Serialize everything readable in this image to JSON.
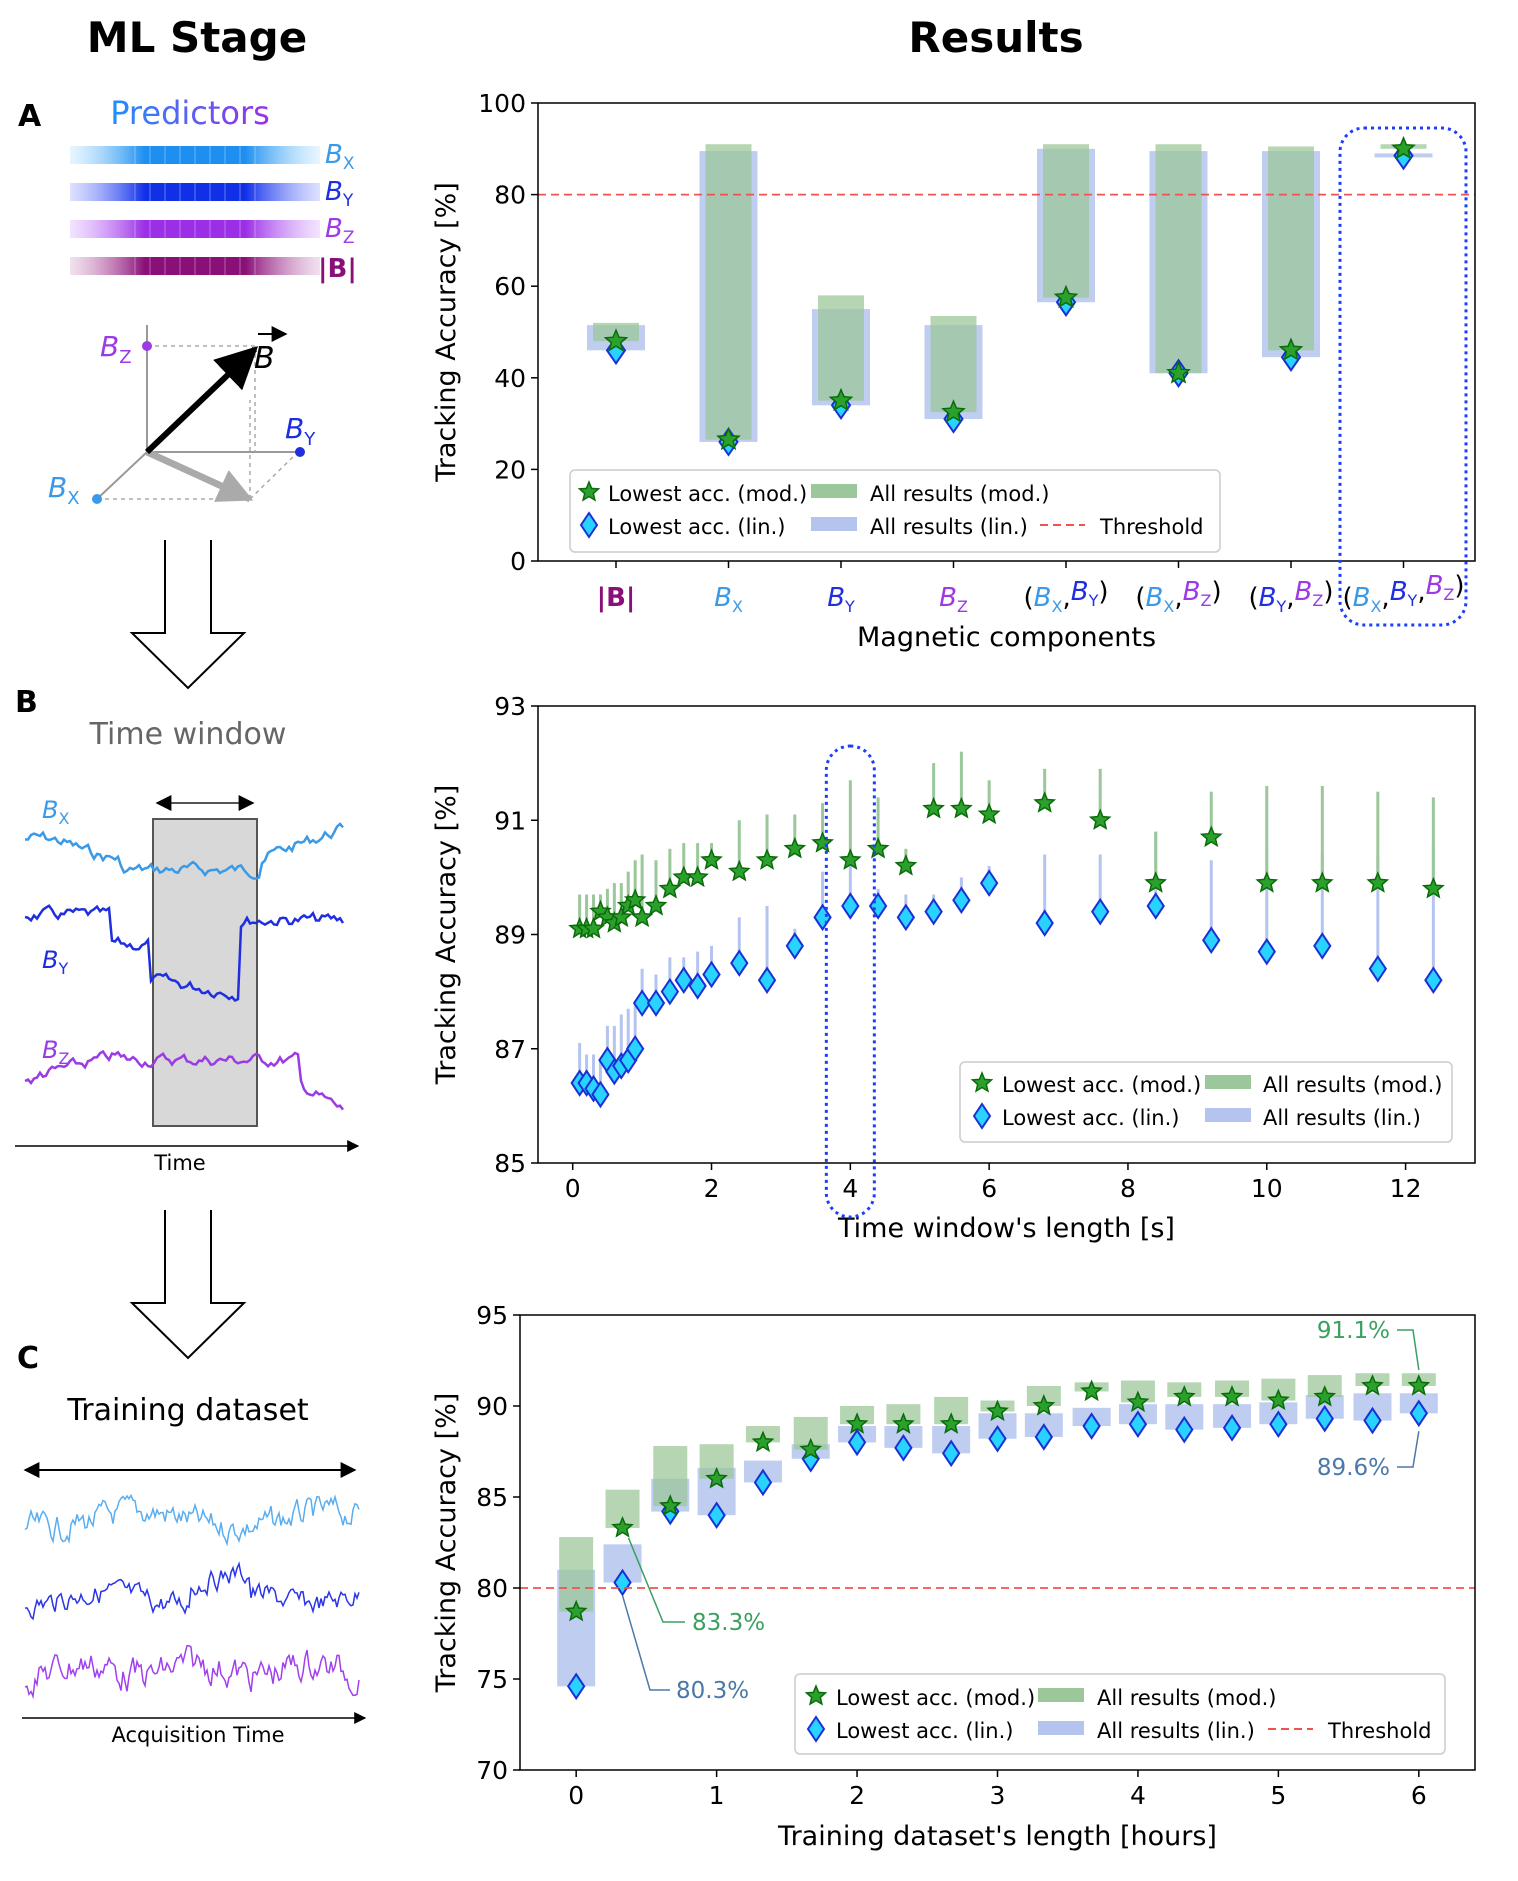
{
  "colors": {
    "mod_bar": "#9cc79a",
    "lin_bar": "#b4c4ef",
    "star_fill": "#2ca02c",
    "star_edge": "#0a6b0a",
    "diamond_fill": "#29d3ff",
    "diamond_edge": "#1a2fd6",
    "threshold": "#ef5350",
    "highlight": "#1a3fff",
    "bx": "#3b9ae8",
    "by": "#1f2fe0",
    "bz": "#9b3be6",
    "bmag": "#8a0f78",
    "green_label": "#3aa060",
    "blue_label": "#4a78a8"
  },
  "headers": {
    "left": "ML Stage",
    "right": "Results"
  },
  "left": {
    "A": {
      "letter": "A",
      "title": "Predictors",
      "labels": [
        "B",
        "B",
        "B",
        "|B|"
      ],
      "subs": [
        "X",
        "Y",
        "Z"
      ],
      "vector_label": "B",
      "axis_labels": [
        "B",
        "B",
        "B"
      ]
    },
    "B": {
      "letter": "B",
      "title": "Time window",
      "signal_labels": [
        "B",
        "B",
        "B"
      ],
      "signal_subs": [
        "X",
        "Y",
        "Z"
      ],
      "axis": "Time"
    },
    "C": {
      "letter": "C",
      "title": "Training dataset",
      "axis": "Acquisition Time"
    }
  },
  "chart_data": [
    {
      "id": "A",
      "type": "bar",
      "xlabel": "Magnetic components",
      "ylabel": "Tracking Accuracy [%]",
      "ylim": [
        0,
        100
      ],
      "yticks": [
        0,
        20,
        40,
        60,
        80,
        100
      ],
      "threshold": 80,
      "categories": [
        "|B|",
        "B_X",
        "B_Y",
        "B_Z",
        "(B_X,B_Y)",
        "(B_X,B_Z)",
        "(B_Y,B_Z)",
        "(B_X,B_Y,B_Z)"
      ],
      "series": [
        {
          "name": "All results (mod.)",
          "low": [
            48,
            26.5,
            35,
            32.5,
            57.5,
            41,
            46,
            90
          ],
          "high": [
            52,
            91,
            58,
            53.5,
            91,
            91,
            90.5,
            91
          ]
        },
        {
          "name": "All results (lin.)",
          "low": [
            46,
            26,
            34,
            31,
            56.5,
            41,
            44.5,
            88.5
          ],
          "high": [
            51.5,
            89.5,
            55,
            51.5,
            90,
            89.5,
            89.5,
            89
          ]
        },
        {
          "name": "Lowest acc. (mod.)",
          "values": [
            48,
            26.5,
            35,
            32.5,
            57.5,
            41,
            46,
            90
          ]
        },
        {
          "name": "Lowest acc. (lin.)",
          "values": [
            46,
            26,
            34,
            31,
            56.5,
            41,
            44.5,
            88.5
          ]
        }
      ],
      "legend": [
        "Lowest acc. (mod.)",
        "All results (mod.)",
        "Lowest acc. (lin.)",
        "All results (lin.)",
        "Threshold"
      ],
      "highlight_category": "(B_X,B_Y,B_Z)"
    },
    {
      "id": "B",
      "type": "scatter",
      "xlabel": "Time window's length [s]",
      "ylabel": "Tracking Accuracy [%]",
      "xlim": [
        -0.5,
        13.0
      ],
      "ylim": [
        85,
        93
      ],
      "xticks": [
        0,
        2,
        4,
        6,
        8,
        10,
        12
      ],
      "yticks": [
        85,
        87,
        89,
        91,
        93
      ],
      "x": [
        0.1,
        0.2,
        0.3,
        0.4,
        0.5,
        0.6,
        0.7,
        0.8,
        0.9,
        1.0,
        1.2,
        1.4,
        1.6,
        1.8,
        2.0,
        2.4,
        2.8,
        3.2,
        3.6,
        4.0,
        4.4,
        4.8,
        5.2,
        5.6,
        6.0,
        6.8,
        7.6,
        8.4,
        9.2,
        10.0,
        10.8,
        11.6,
        12.4
      ],
      "series": [
        {
          "name": "Lowest acc. (mod.)",
          "values": [
            89.1,
            89.1,
            89.1,
            89.4,
            89.3,
            89.2,
            89.3,
            89.5,
            89.6,
            89.3,
            89.5,
            89.8,
            90.0,
            90.0,
            90.3,
            90.1,
            90.3,
            90.5,
            90.6,
            90.3,
            90.5,
            90.2,
            91.2,
            91.2,
            91.1,
            91.3,
            91.0,
            89.9,
            90.7,
            89.9,
            89.9,
            89.9,
            89.8
          ]
        },
        {
          "name": "All results (mod.) max",
          "values": [
            89.7,
            89.7,
            89.7,
            89.7,
            89.8,
            89.9,
            89.9,
            90.1,
            90.3,
            90.4,
            90.3,
            90.5,
            90.6,
            90.6,
            90.6,
            91.0,
            91.1,
            91.1,
            91.3,
            91.7,
            91.4,
            90.5,
            92.0,
            92.2,
            91.7,
            91.9,
            91.9,
            90.8,
            91.5,
            91.6,
            91.6,
            91.5,
            91.4
          ]
        },
        {
          "name": "Lowest acc. (lin.)",
          "values": [
            86.4,
            86.4,
            86.3,
            86.2,
            86.8,
            86.6,
            86.7,
            86.8,
            87.0,
            87.8,
            87.8,
            88.0,
            88.2,
            88.1,
            88.3,
            88.5,
            88.2,
            88.8,
            89.3,
            89.5,
            89.5,
            89.3,
            89.4,
            89.6,
            89.9,
            89.2,
            89.4,
            89.5,
            88.9,
            88.7,
            88.8,
            88.4,
            88.2
          ]
        },
        {
          "name": "All results (lin.) max",
          "values": [
            87.1,
            86.9,
            86.9,
            86.8,
            87.4,
            87.4,
            87.6,
            87.7,
            87.8,
            88.4,
            88.3,
            88.6,
            88.6,
            88.7,
            88.8,
            89.3,
            89.5,
            89.1,
            90.1,
            90.2,
            89.8,
            89.7,
            89.7,
            90.0,
            90.2,
            90.4,
            90.4,
            90.8,
            90.3,
            90.5,
            90.4,
            90.4,
            90.6
          ]
        }
      ],
      "legend": [
        "Lowest acc. (mod.)",
        "All results (mod.)",
        "Lowest acc. (lin.)",
        "All results (lin.)"
      ],
      "highlight_x": 4
    },
    {
      "id": "C",
      "type": "bar",
      "xlabel": "Training dataset's length [hours]",
      "ylabel": "Tracking Accuracy [%]",
      "xlim": [
        -0.4,
        6.4
      ],
      "ylim": [
        70,
        95
      ],
      "xticks": [
        0,
        1,
        2,
        3,
        4,
        5,
        6
      ],
      "yticks": [
        70,
        75,
        80,
        85,
        90,
        95
      ],
      "threshold": 80,
      "x": [
        0.0,
        0.33,
        0.67,
        1.0,
        1.33,
        1.67,
        2.0,
        2.33,
        2.67,
        3.0,
        3.33,
        3.67,
        4.0,
        4.33,
        4.67,
        5.0,
        5.33,
        5.67,
        6.0
      ],
      "series": [
        {
          "name": "All results (mod.)",
          "low": [
            78.7,
            83.3,
            84.5,
            86.0,
            88.0,
            87.6,
            89.0,
            89.0,
            89.0,
            89.7,
            90.0,
            90.8,
            90.2,
            90.5,
            90.5,
            90.3,
            90.5,
            91.1,
            91.1
          ],
          "high": [
            82.8,
            85.4,
            87.8,
            87.9,
            88.9,
            89.4,
            90.0,
            90.1,
            90.5,
            90.3,
            91.1,
            91.3,
            91.4,
            91.3,
            91.4,
            91.5,
            91.7,
            91.8,
            91.8
          ]
        },
        {
          "name": "All results (lin.)",
          "low": [
            74.6,
            80.3,
            84.2,
            84.0,
            85.8,
            87.1,
            88.0,
            87.7,
            87.4,
            88.2,
            88.3,
            88.9,
            89.0,
            88.7,
            88.8,
            89.0,
            89.3,
            89.2,
            89.6
          ],
          "high": [
            81.0,
            82.4,
            86.0,
            86.6,
            87.0,
            87.9,
            88.9,
            88.9,
            88.9,
            89.6,
            89.6,
            89.9,
            90.1,
            90.1,
            90.1,
            90.2,
            90.6,
            90.7,
            90.7
          ]
        },
        {
          "name": "Lowest acc. (mod.)",
          "values": [
            78.7,
            83.3,
            84.5,
            86.0,
            88.0,
            87.6,
            89.0,
            89.0,
            89.0,
            89.7,
            90.0,
            90.8,
            90.2,
            90.5,
            90.5,
            90.3,
            90.5,
            91.1,
            91.1
          ]
        },
        {
          "name": "Lowest acc. (lin.)",
          "values": [
            74.6,
            80.3,
            84.2,
            84.0,
            85.8,
            87.1,
            88.0,
            87.7,
            87.4,
            88.2,
            88.3,
            88.9,
            89.0,
            88.7,
            88.8,
            89.0,
            89.3,
            89.2,
            89.6
          ]
        }
      ],
      "annotations": [
        "91.1%",
        "89.6%",
        "83.3%",
        "80.3%"
      ],
      "legend": [
        "Lowest acc. (mod.)",
        "All results (mod.)",
        "Lowest acc. (lin.)",
        "All results (lin.)",
        "Threshold"
      ]
    }
  ]
}
